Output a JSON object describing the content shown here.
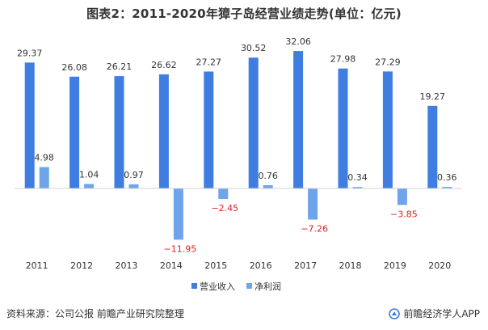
{
  "title": "图表2：2011-2020年獐子岛经营业绩走势(单位：亿元)",
  "footer": {
    "source": "资料来源：公司公报 前瞻产业研究院整理",
    "brand": "前瞻经济学人APP"
  },
  "colors": {
    "revenue": "#3f7de0",
    "profit": "#6ea5ea",
    "negative_label": "#e02020",
    "text": "#333333"
  },
  "chart_data": {
    "type": "bar",
    "categories": [
      "2011",
      "2012",
      "2013",
      "2014",
      "2015",
      "2016",
      "2017",
      "2018",
      "2019",
      "2020"
    ],
    "series": [
      {
        "name": "营业收入",
        "values": [
          29.37,
          26.08,
          26.21,
          26.62,
          27.27,
          30.52,
          32.06,
          27.98,
          27.29,
          19.27
        ]
      },
      {
        "name": "净利润",
        "values": [
          4.98,
          1.04,
          0.97,
          -11.95,
          -2.45,
          0.76,
          -7.26,
          0.34,
          -3.85,
          0.36
        ]
      }
    ],
    "labels": {
      "revenue": [
        "29.37",
        "26.08",
        "26.21",
        "26.62",
        "27.27",
        "30.52",
        "32.06",
        "27.98",
        "27.29",
        "19.27"
      ],
      "profit": [
        "4.98",
        "1.04",
        "0.97",
        "−11.95",
        "−2.45",
        "0.76",
        "−7.26",
        "0.34",
        "−3.85",
        "0.36"
      ]
    },
    "ylim": [
      -14,
      34
    ],
    "grid": false,
    "legend_position": "bottom-center"
  }
}
